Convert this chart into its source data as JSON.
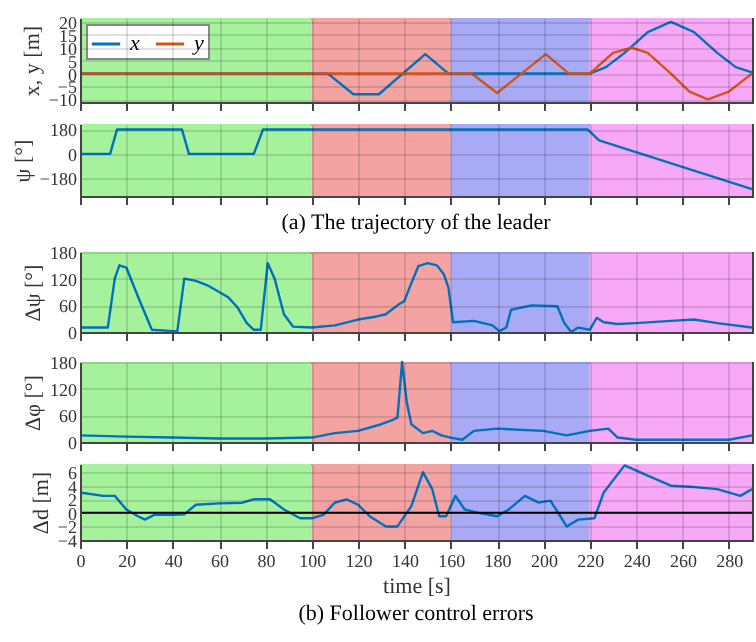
{
  "chart_data": [
    {
      "type": "line",
      "ylabel": "x, y [m]",
      "xlim": [
        0,
        290
      ],
      "xticks": [
        0,
        20,
        40,
        60,
        80,
        100,
        120,
        140,
        160,
        180,
        200,
        220,
        240,
        260,
        280
      ],
      "ylim": [
        -11,
        21.5
      ],
      "yticks": [
        -10,
        -5,
        0,
        5,
        10,
        15,
        20
      ],
      "grid": true,
      "legend": "top left",
      "tick_labels": "y",
      "bands": [
        {
          "axis": "x",
          "from": 0,
          "to": 100,
          "color": "#a6f29c"
        },
        {
          "axis": "x",
          "from": 100,
          "to": 160,
          "color": "#f4a3a3"
        },
        {
          "axis": "x",
          "from": 160,
          "to": 220,
          "color": "#a9aaf5"
        },
        {
          "axis": "x",
          "from": 220,
          "to": 290,
          "color": "#f7a9f7"
        }
      ],
      "series": [
        {
          "name": "x",
          "color": "#0072bd",
          "x": [
            0,
            100,
            107,
            118,
            129,
            149,
            159,
            220,
            227,
            235,
            245,
            255,
            265,
            275,
            283,
            290
          ],
          "values": [
            0,
            0,
            0,
            -8,
            -8,
            7.5,
            0,
            0,
            2.5,
            8,
            16,
            20,
            16,
            8,
            2.5,
            0.5
          ]
        },
        {
          "name": "y",
          "color": "#d95319",
          "x": [
            0,
            169,
            180,
            201,
            211,
            220,
            225,
            230,
            238,
            245,
            255,
            263,
            271,
            280,
            290
          ],
          "values": [
            0,
            0,
            -7.5,
            7.5,
            0,
            0,
            4,
            8,
            10,
            8,
            0,
            -7,
            -10,
            -7,
            0
          ]
        }
      ]
    },
    {
      "type": "line",
      "title": "(a) The trajectory of the leader",
      "ylabel": "ψ [°]",
      "xlim": [
        0,
        290
      ],
      "xticks": [
        0,
        20,
        40,
        60,
        80,
        100,
        120,
        140,
        160,
        180,
        200,
        220,
        240,
        260,
        280
      ],
      "ylim": [
        -310,
        220
      ],
      "yticks": [
        -180,
        0,
        180
      ],
      "grid": true,
      "tick_labels": "y",
      "bands": [
        {
          "axis": "x",
          "from": 0,
          "to": 100,
          "color": "#a6f29c"
        },
        {
          "axis": "x",
          "from": 100,
          "to": 160,
          "color": "#f4a3a3"
        },
        {
          "axis": "x",
          "from": 160,
          "to": 220,
          "color": "#a9aaf5"
        },
        {
          "axis": "x",
          "from": 220,
          "to": 290,
          "color": "#f7a9f7"
        }
      ],
      "series": [
        {
          "color": "#0072bd",
          "x": [
            0,
            13,
            16,
            44,
            47,
            75,
            79,
            219,
            224,
            290
          ],
          "values": [
            0,
            0,
            180,
            180,
            0,
            0,
            180,
            180,
            100,
            -260
          ]
        }
      ]
    },
    {
      "type": "line",
      "ylabel": "Δψ [°]",
      "xlim": [
        0,
        290
      ],
      "xticks": [
        0,
        20,
        40,
        60,
        80,
        100,
        120,
        140,
        160,
        180,
        200,
        220,
        240,
        260,
        280
      ],
      "ylim": [
        0,
        180
      ],
      "yticks": [
        0,
        60,
        120,
        180
      ],
      "grid": true,
      "tick_labels": "y",
      "bands": [
        {
          "axis": "x",
          "from": 0,
          "to": 100,
          "color": "#a6f29c"
        },
        {
          "axis": "x",
          "from": 100,
          "to": 160,
          "color": "#f4a3a3"
        },
        {
          "axis": "x",
          "from": 160,
          "to": 220,
          "color": "#a9aaf5"
        },
        {
          "axis": "x",
          "from": 220,
          "to": 290,
          "color": "#f7a9f7"
        }
      ],
      "series": [
        {
          "color": "#0072bd",
          "x": [
            0,
            12,
            15,
            17,
            20,
            25,
            31,
            40,
            42,
            45,
            50,
            55,
            60,
            64,
            68,
            72,
            75,
            78,
            81,
            84,
            88,
            92,
            100,
            110,
            120,
            128,
            132,
            137,
            140,
            143,
            146,
            150,
            154,
            157,
            159,
            161,
            170,
            178,
            181,
            184,
            186,
            195,
            206,
            209,
            212,
            215,
            220,
            223,
            226,
            232,
            240,
            255,
            265,
            275,
            290
          ],
          "values": [
            10,
            10,
            120,
            150,
            145,
            80,
            5,
            2,
            2,
            120,
            115,
            105,
            90,
            78,
            55,
            20,
            5,
            5,
            155,
            120,
            40,
            12,
            10,
            15,
            28,
            35,
            40,
            60,
            70,
            110,
            148,
            155,
            150,
            130,
            100,
            22,
            25,
            15,
            2,
            10,
            50,
            60,
            58,
            20,
            0,
            10,
            5,
            32,
            22,
            18,
            20,
            25,
            28,
            20,
            10
          ]
        }
      ]
    },
    {
      "type": "line",
      "ylabel": "Δφ [°]",
      "xlim": [
        0,
        290
      ],
      "xticks": [
        0,
        20,
        40,
        60,
        80,
        100,
        120,
        140,
        160,
        180,
        200,
        220,
        240,
        260,
        280
      ],
      "ylim": [
        0,
        180
      ],
      "yticks": [
        0,
        60,
        120,
        180
      ],
      "grid": true,
      "tick_labels": "y",
      "bands": [
        {
          "axis": "x",
          "from": 0,
          "to": 100,
          "color": "#a6f29c"
        },
        {
          "axis": "x",
          "from": 100,
          "to": 160,
          "color": "#f4a3a3"
        },
        {
          "axis": "x",
          "from": 160,
          "to": 220,
          "color": "#a9aaf5"
        },
        {
          "axis": "x",
          "from": 220,
          "to": 290,
          "color": "#f7a9f7"
        }
      ],
      "series": [
        {
          "color": "#0072bd",
          "x": [
            0,
            20,
            40,
            60,
            80,
            100,
            110,
            120,
            130,
            135,
            137,
            139,
            141,
            143,
            148,
            152,
            156,
            160,
            165,
            170,
            180,
            200,
            210,
            220,
            228,
            232,
            240,
            260,
            280,
            290
          ],
          "values": [
            15,
            12,
            10,
            8,
            8,
            10,
            20,
            25,
            40,
            50,
            55,
            180,
            90,
            40,
            20,
            25,
            15,
            10,
            5,
            25,
            30,
            25,
            15,
            25,
            30,
            10,
            5,
            5,
            5,
            15
          ]
        }
      ]
    },
    {
      "type": "line",
      "title": "(b) Follower control errors",
      "xlabel": "time [s]",
      "ylabel": "Δd [m]",
      "xlim": [
        0,
        290
      ],
      "xticks": [
        0,
        20,
        40,
        60,
        80,
        100,
        120,
        140,
        160,
        180,
        200,
        220,
        240,
        260,
        280
      ],
      "ylim": [
        -4,
        7.2
      ],
      "yticks": [
        -4,
        -2,
        0,
        2,
        4,
        6
      ],
      "grid": true,
      "bands": [
        {
          "axis": "x",
          "from": 0,
          "to": 100,
          "color": "#a6f29c"
        },
        {
          "axis": "x",
          "from": 100,
          "to": 160,
          "color": "#f4a3a3"
        },
        {
          "axis": "x",
          "from": 160,
          "to": 220,
          "color": "#a9aaf5"
        },
        {
          "axis": "x",
          "from": 220,
          "to": 290,
          "color": "#f7a9f7"
        }
      ],
      "ref_lines": [
        {
          "axis": "y",
          "value": 0,
          "color": "#000000"
        }
      ],
      "series": [
        {
          "color": "#0072bd",
          "x": [
            0,
            10,
            15,
            20,
            25,
            28,
            32,
            40,
            45,
            50,
            60,
            70,
            75,
            82,
            88,
            95,
            100,
            105,
            110,
            115,
            120,
            125,
            132,
            137,
            143,
            148,
            152,
            155,
            158,
            162,
            166,
            172,
            180,
            185,
            192,
            198,
            203,
            206,
            210,
            215,
            222,
            226,
            235,
            245,
            255,
            265,
            275,
            285,
            290
          ],
          "values": [
            3,
            2.5,
            2.5,
            0.5,
            -0.5,
            -1,
            -0.3,
            -0.3,
            -0.2,
            1.2,
            1.4,
            1.5,
            2,
            2,
            0.5,
            -0.8,
            -0.8,
            -0.3,
            1.5,
            2,
            1.2,
            -0.5,
            -2,
            -2,
            1,
            6,
            3.5,
            -0.5,
            -0.5,
            2.5,
            0.5,
            0,
            -0.5,
            0.5,
            2.5,
            1.5,
            1.8,
            0.2,
            -2,
            -1,
            -0.8,
            3,
            7,
            5.5,
            4,
            3.8,
            3.5,
            2.5,
            3.5
          ]
        }
      ]
    }
  ]
}
